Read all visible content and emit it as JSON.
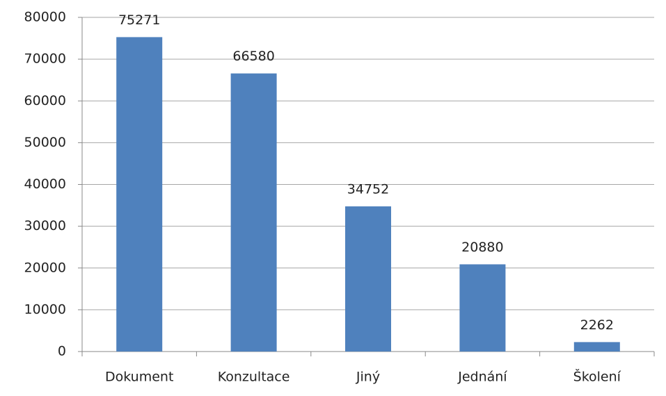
{
  "chart_data": {
    "type": "bar",
    "categories": [
      "Dokument",
      "Konzultace",
      "Jiný",
      "Jednání",
      "Školení"
    ],
    "values": [
      75271,
      66580,
      34752,
      20880,
      2262
    ],
    "color": "#4f81bd",
    "ylim": [
      0,
      80000
    ],
    "yticks": [
      0,
      10000,
      20000,
      30000,
      40000,
      50000,
      60000,
      70000,
      80000
    ],
    "grid": true
  }
}
